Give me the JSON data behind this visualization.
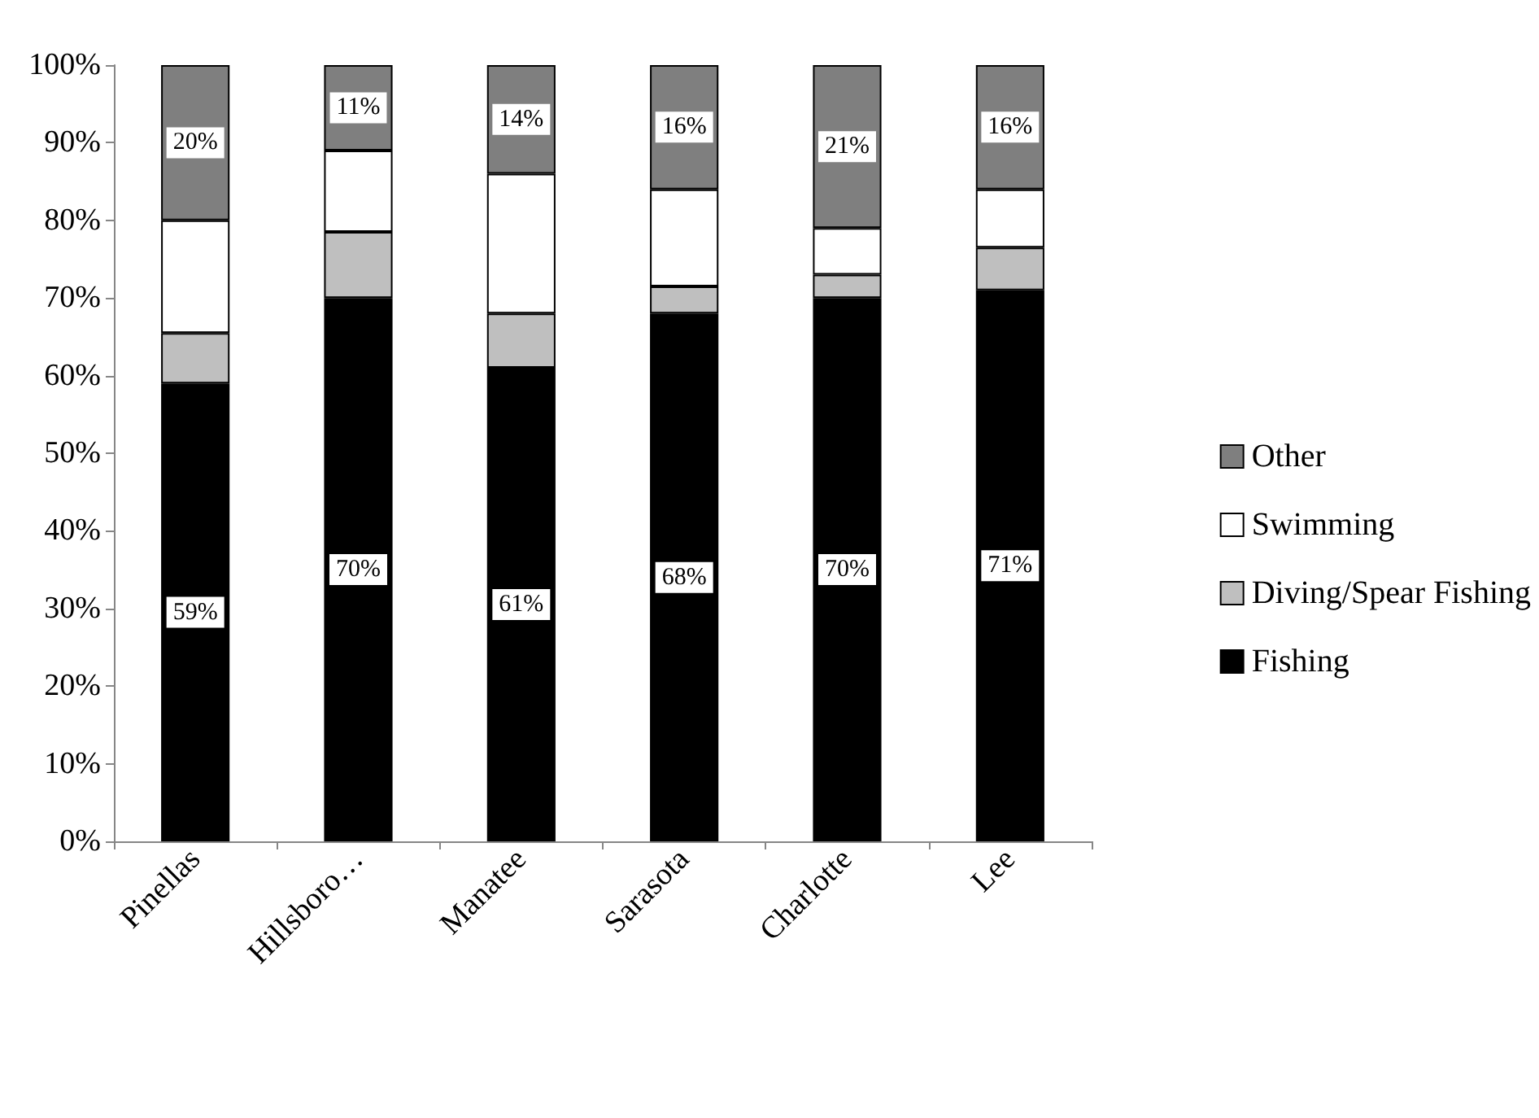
{
  "chart_data": {
    "type": "bar",
    "stacked": true,
    "categories": [
      "Pinellas",
      "Hillsboro…",
      "Manatee",
      "Sarasota",
      "Charlotte",
      "Lee"
    ],
    "series": [
      {
        "name": "Fishing",
        "color": "#000000",
        "values": [
          59,
          70,
          61,
          68,
          70,
          71
        ],
        "value_labels": [
          "59%",
          "70%",
          "61%",
          "68%",
          "70%",
          "71%"
        ]
      },
      {
        "name": "Diving/Spear Fishing",
        "color": "#bfbfbf",
        "values": [
          6.5,
          8.5,
          7,
          3.5,
          3,
          5.5
        ]
      },
      {
        "name": "Swimming",
        "color": "#ffffff",
        "values": [
          14.5,
          10.5,
          18,
          12.5,
          6,
          7.5
        ]
      },
      {
        "name": "Other",
        "color": "#7f7f7f",
        "values": [
          20,
          11,
          14,
          16,
          21,
          16
        ],
        "value_labels": [
          "20%",
          "11%",
          "14%",
          "16%",
          "21%",
          "16%"
        ]
      }
    ],
    "ylim": [
      0,
      100
    ],
    "yticks": [
      {
        "value": 0,
        "label": "0%"
      },
      {
        "value": 10,
        "label": "10%"
      },
      {
        "value": 20,
        "label": "20%"
      },
      {
        "value": 30,
        "label": "30%"
      },
      {
        "value": 40,
        "label": "40%"
      },
      {
        "value": 50,
        "label": "50%"
      },
      {
        "value": 60,
        "label": "60%"
      },
      {
        "value": 70,
        "label": "70%"
      },
      {
        "value": 80,
        "label": "80%"
      },
      {
        "value": 90,
        "label": "90%"
      },
      {
        "value": 100,
        "label": "100%"
      }
    ],
    "grid": false,
    "legend": "right"
  }
}
